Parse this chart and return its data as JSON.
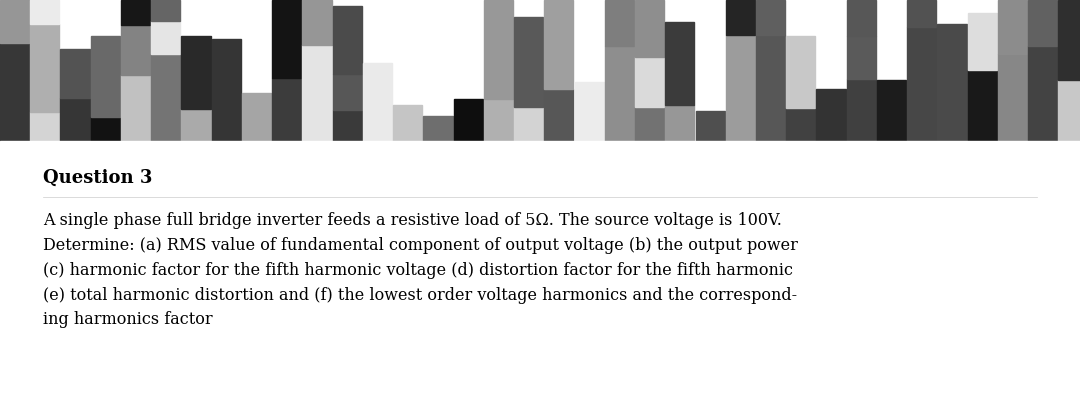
{
  "title": "Question 3",
  "title_fontsize": 13,
  "title_fontweight": "bold",
  "body_text": "A single phase full bridge inverter feeds a resistive load of 5Ω. The source voltage is 100V.\nDetermine: (a) RMS value of fundamental component of output voltage (b) the output power\n(c) harmonic factor for the fifth harmonic voltage (d) distortion factor for the fifth harmonic\n(e) total harmonic distortion and (f) the lowest order voltage harmonics and the correspond-\ning harmonics factor",
  "body_fontsize": 11.5,
  "background_color": "#ffffff",
  "text_color": "#000000"
}
